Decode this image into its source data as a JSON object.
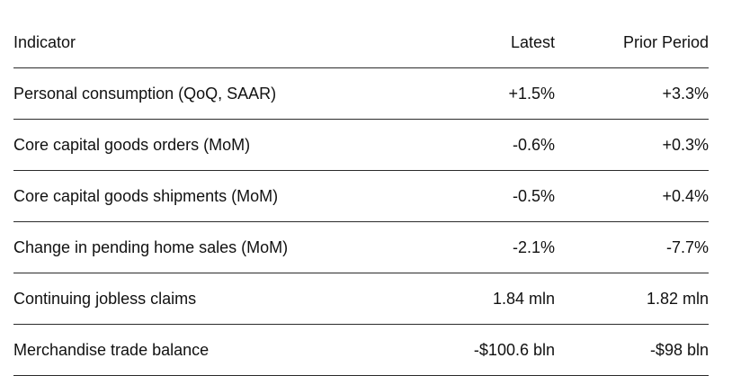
{
  "table": {
    "headers": {
      "indicator": "Indicator",
      "latest": "Latest",
      "prior": "Prior Period"
    },
    "rows": [
      {
        "indicator": "Personal consumption (QoQ, SAAR)",
        "latest": "+1.5%",
        "prior": "+3.3%"
      },
      {
        "indicator": "Core capital goods orders (MoM)",
        "latest": "-0.6%",
        "prior": "+0.3%"
      },
      {
        "indicator": "Core capital goods shipments (MoM)",
        "latest": "-0.5%",
        "prior": "+0.4%"
      },
      {
        "indicator": "Change in pending home sales (MoM)",
        "latest": "-2.1%",
        "prior": "-7.7%"
      },
      {
        "indicator": "Continuing jobless claims",
        "latest": "1.84 mln",
        "prior": "1.82 mln"
      },
      {
        "indicator": "Merchandise trade balance",
        "latest": "-$100.6 bln",
        "prior": "-$98 bln"
      }
    ]
  }
}
